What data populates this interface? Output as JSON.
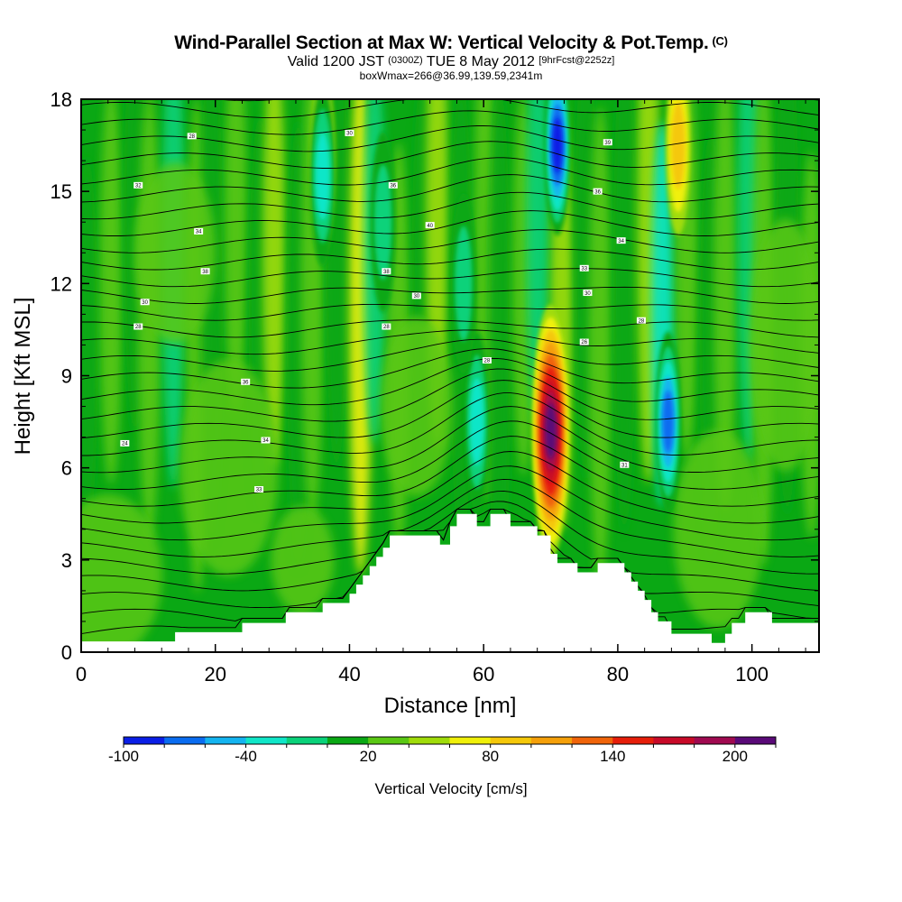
{
  "header": {
    "title": "Wind-Parallel Section at Max W: Vertical Velocity & Pot.Temp.",
    "copyright": "(C)",
    "valid_prefix": "Valid 1200 JST",
    "valid_utc": "(0300Z)",
    "valid_date": "TUE 8 May 2012",
    "forecast": "[9hrFcst@2252z]",
    "box_info": "boxWmax=266@36.99,139.59,2341m"
  },
  "chart_data": {
    "type": "heatmap",
    "title": "Wind-Parallel Section at Max W: Vertical Velocity & Pot.Temp.",
    "xlabel": "Distance [nm]",
    "ylabel": "Height [Kft MSL]",
    "xlim": [
      0,
      110
    ],
    "ylim": [
      0,
      18
    ],
    "xticks": [
      "0",
      "20",
      "40",
      "60",
      "80",
      "100"
    ],
    "yticks": [
      "0",
      "3",
      "6",
      "9",
      "12",
      "15",
      "18"
    ],
    "colorbar": {
      "label": "Vertical Velocity [cm/s]",
      "tick_labels": [
        "-100",
        "-40",
        "20",
        "80",
        "140",
        "200"
      ],
      "tick_values": [
        -100,
        -40,
        20,
        80,
        140,
        200
      ],
      "levels": [
        -100,
        -80,
        -60,
        -40,
        -20,
        0,
        20,
        40,
        60,
        80,
        100,
        120,
        140,
        160,
        180,
        200,
        220
      ],
      "colors": [
        "#0a1ee6",
        "#0a6cf0",
        "#14b4f0",
        "#10e6c8",
        "#0ad27a",
        "#0aa814",
        "#5ac814",
        "#a0dc0a",
        "#f0f00a",
        "#f5c80a",
        "#f5a00a",
        "#f0640a",
        "#e61e0a",
        "#c80a28",
        "#a00a50",
        "#5a0a78"
      ]
    },
    "w_features": [
      {
        "kind": "updraft",
        "x": 70,
        "y": 7.2,
        "peak": 200
      },
      {
        "kind": "downdraft",
        "x": 71,
        "y": 16.5,
        "peak": -100
      },
      {
        "kind": "downdraft",
        "x": 87.5,
        "y": 7.5,
        "peak": -80
      },
      {
        "kind": "updraft",
        "x": 89,
        "y": 16.5,
        "peak": 80
      },
      {
        "kind": "updraft",
        "x": 36,
        "y": 16,
        "peak": 80
      },
      {
        "kind": "downdraft",
        "x": 36,
        "y": 15.5,
        "peak": -40
      },
      {
        "kind": "downdraft",
        "x": 59,
        "y": 7.5,
        "peak": -40
      },
      {
        "kind": "downdraft",
        "x": 45,
        "y": 14,
        "peak": -20
      },
      {
        "kind": "downdraft",
        "x": 57,
        "y": 12,
        "peak": -20
      }
    ],
    "terrain_kft": [
      [
        0,
        0.35
      ],
      [
        14,
        0.35
      ],
      [
        14,
        0.65
      ],
      [
        24,
        0.65
      ],
      [
        24,
        0.95
      ],
      [
        30.5,
        0.95
      ],
      [
        30.5,
        1.3
      ],
      [
        36,
        1.3
      ],
      [
        36,
        1.6
      ],
      [
        40,
        1.6
      ],
      [
        40,
        1.9
      ],
      [
        41,
        1.9
      ],
      [
        41,
        2.2
      ],
      [
        42,
        2.2
      ],
      [
        42,
        2.5
      ],
      [
        43,
        2.5
      ],
      [
        43,
        2.8
      ],
      [
        44,
        2.8
      ],
      [
        44,
        3.1
      ],
      [
        45,
        3.1
      ],
      [
        45,
        3.4
      ],
      [
        46,
        3.4
      ],
      [
        46,
        3.8
      ],
      [
        53.5,
        3.8
      ],
      [
        53.5,
        3.5
      ],
      [
        55,
        3.5
      ],
      [
        55,
        4.1
      ],
      [
        56,
        4.1
      ],
      [
        56,
        4.5
      ],
      [
        59,
        4.5
      ],
      [
        59,
        4.1
      ],
      [
        61,
        4.1
      ],
      [
        61,
        4.5
      ],
      [
        64,
        4.5
      ],
      [
        64,
        4.1
      ],
      [
        68,
        4.1
      ],
      [
        68,
        3.8
      ],
      [
        70,
        3.8
      ],
      [
        70,
        3.2
      ],
      [
        71,
        3.2
      ],
      [
        71,
        2.9
      ],
      [
        74,
        2.9
      ],
      [
        74,
        2.6
      ],
      [
        77,
        2.6
      ],
      [
        77,
        2.9
      ],
      [
        81,
        2.9
      ],
      [
        81,
        2.6
      ],
      [
        82,
        2.6
      ],
      [
        82,
        2.3
      ],
      [
        83,
        2.3
      ],
      [
        83,
        2.0
      ],
      [
        84,
        2.0
      ],
      [
        84,
        1.7
      ],
      [
        85,
        1.7
      ],
      [
        85,
        1.3
      ],
      [
        86,
        1.3
      ],
      [
        86,
        1.0
      ],
      [
        88,
        1.0
      ],
      [
        88,
        0.6
      ],
      [
        94,
        0.6
      ],
      [
        94,
        0.3
      ],
      [
        96,
        0.3
      ],
      [
        96,
        0.6
      ],
      [
        97,
        0.6
      ],
      [
        97,
        0.95
      ],
      [
        99,
        0.95
      ],
      [
        99,
        1.3
      ],
      [
        103,
        1.3
      ],
      [
        103,
        0.95
      ],
      [
        110,
        0.95
      ]
    ],
    "isentrope_labels": [
      {
        "x": 16.5,
        "y": 16.8,
        "text": "28"
      },
      {
        "x": 40,
        "y": 16.9,
        "text": "30"
      },
      {
        "x": 8.5,
        "y": 15.2,
        "text": "32"
      },
      {
        "x": 46.5,
        "y": 15.2,
        "text": "36"
      },
      {
        "x": 78.5,
        "y": 16.6,
        "text": "39"
      },
      {
        "x": 77,
        "y": 15,
        "text": "36"
      },
      {
        "x": 17.5,
        "y": 13.7,
        "text": "34"
      },
      {
        "x": 52,
        "y": 13.9,
        "text": "40"
      },
      {
        "x": 80.5,
        "y": 13.4,
        "text": "34"
      },
      {
        "x": 18.5,
        "y": 12.4,
        "text": "38"
      },
      {
        "x": 45.5,
        "y": 12.4,
        "text": "38"
      },
      {
        "x": 75,
        "y": 12.5,
        "text": "33"
      },
      {
        "x": 9.5,
        "y": 11.4,
        "text": "30"
      },
      {
        "x": 50,
        "y": 11.6,
        "text": "30"
      },
      {
        "x": 75.5,
        "y": 11.7,
        "text": "30"
      },
      {
        "x": 8.5,
        "y": 10.6,
        "text": "28"
      },
      {
        "x": 45.5,
        "y": 10.6,
        "text": "28"
      },
      {
        "x": 83.5,
        "y": 10.8,
        "text": "28"
      },
      {
        "x": 75,
        "y": 10.1,
        "text": "26"
      },
      {
        "x": 60.5,
        "y": 9.5,
        "text": "28"
      },
      {
        "x": 24.5,
        "y": 8.8,
        "text": "36"
      },
      {
        "x": 6.5,
        "y": 6.8,
        "text": "24"
      },
      {
        "x": 27.5,
        "y": 6.9,
        "text": "34"
      },
      {
        "x": 81,
        "y": 6.1,
        "text": "31"
      },
      {
        "x": 26.5,
        "y": 5.3,
        "text": "33"
      }
    ]
  }
}
